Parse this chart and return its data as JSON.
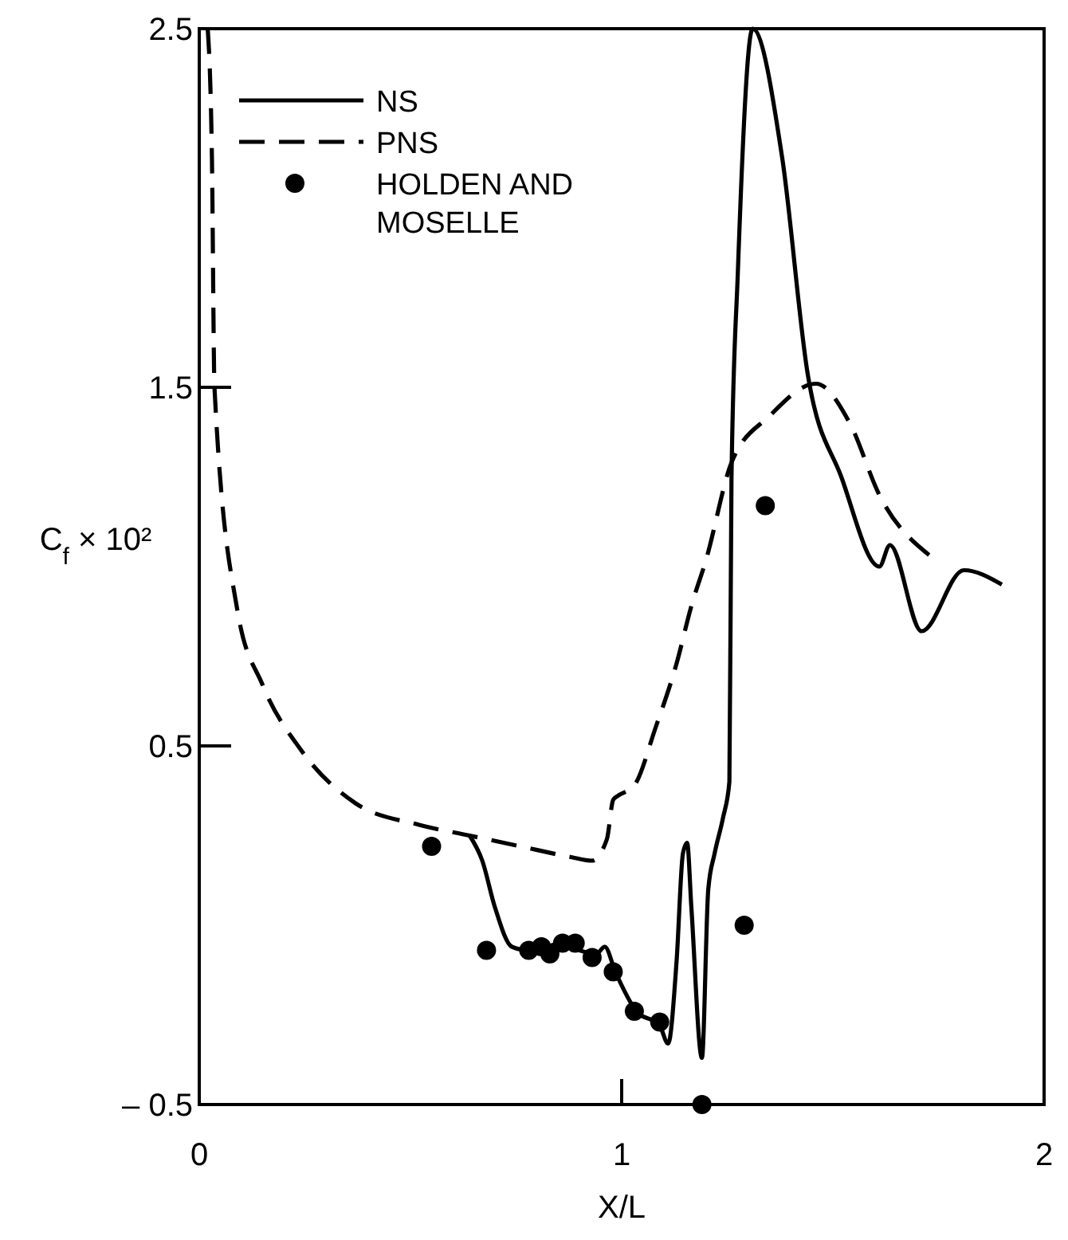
{
  "chart_data": {
    "type": "line",
    "xlabel": "X/L",
    "ylabel": "C$_{f}$ × 10²",
    "xlim": [
      0,
      2
    ],
    "xticks": [
      0,
      1,
      2
    ],
    "ylim": [
      -0.5,
      2.5
    ],
    "yticks": [
      {
        "value": -0.5,
        "label": "– 0.5"
      },
      0.5,
      1.5,
      2.5
    ],
    "legend": "top left",
    "grid": false,
    "series": [
      {
        "name": "NS",
        "line_style": "solid",
        "marker": "none",
        "color": "#000000",
        "x": [
          0.64,
          0.67,
          0.7,
          0.74,
          0.78,
          0.82,
          0.86,
          0.9,
          0.94,
          0.96,
          0.985,
          1.035,
          1.09,
          1.11,
          1.13,
          1.145,
          1.155,
          1.165,
          1.19,
          1.205,
          1.22,
          1.24,
          1.255,
          1.26,
          1.275,
          1.31,
          1.38,
          1.44,
          1.52,
          1.61,
          1.635,
          1.71,
          1.81,
          1.9
        ],
        "values": [
          0.25,
          0.18,
          0.05,
          -0.06,
          -0.07,
          -0.06,
          -0.05,
          -0.07,
          -0.08,
          -0.06,
          -0.13,
          -0.24,
          -0.28,
          -0.33,
          -0.1,
          0.2,
          0.23,
          0.05,
          -0.37,
          0.1,
          0.2,
          0.3,
          0.4,
          1.25,
          1.82,
          2.5,
          2.14,
          1.54,
          1.25,
          1.0,
          1.06,
          0.82,
          0.99,
          0.95
        ]
      },
      {
        "name": "PNS",
        "line_style": "dashed",
        "marker": "none",
        "color": "#000000",
        "x": [
          0.02,
          0.03,
          0.036,
          0.09,
          0.15,
          0.24,
          0.37,
          0.52,
          0.64,
          0.76,
          0.88,
          0.93,
          0.965,
          0.98,
          0.99,
          1.03,
          1.08,
          1.13,
          1.165,
          1.2,
          1.26,
          1.35,
          1.46,
          1.54,
          1.61,
          1.73
        ],
        "values": [
          2.5,
          2.14,
          1.5,
          0.88,
          0.67,
          0.49,
          0.34,
          0.28,
          0.25,
          0.22,
          0.19,
          0.18,
          0.24,
          0.35,
          0.36,
          0.39,
          0.55,
          0.73,
          0.89,
          1.02,
          1.29,
          1.42,
          1.51,
          1.4,
          1.2,
          1.03
        ]
      },
      {
        "name": "HOLDEN AND MOSELLE",
        "type": "scatter",
        "marker": "circle",
        "color": "#000000",
        "x": [
          0.55,
          0.68,
          0.78,
          0.81,
          0.83,
          0.86,
          0.89,
          0.93,
          0.98,
          1.03,
          1.09,
          1.19,
          1.29,
          1.34
        ],
        "values": [
          0.22,
          -0.07,
          -0.07,
          -0.06,
          -0.08,
          -0.05,
          -0.05,
          -0.09,
          -0.13,
          -0.24,
          -0.27,
          -0.5,
          0.0,
          1.17
        ]
      }
    ]
  }
}
